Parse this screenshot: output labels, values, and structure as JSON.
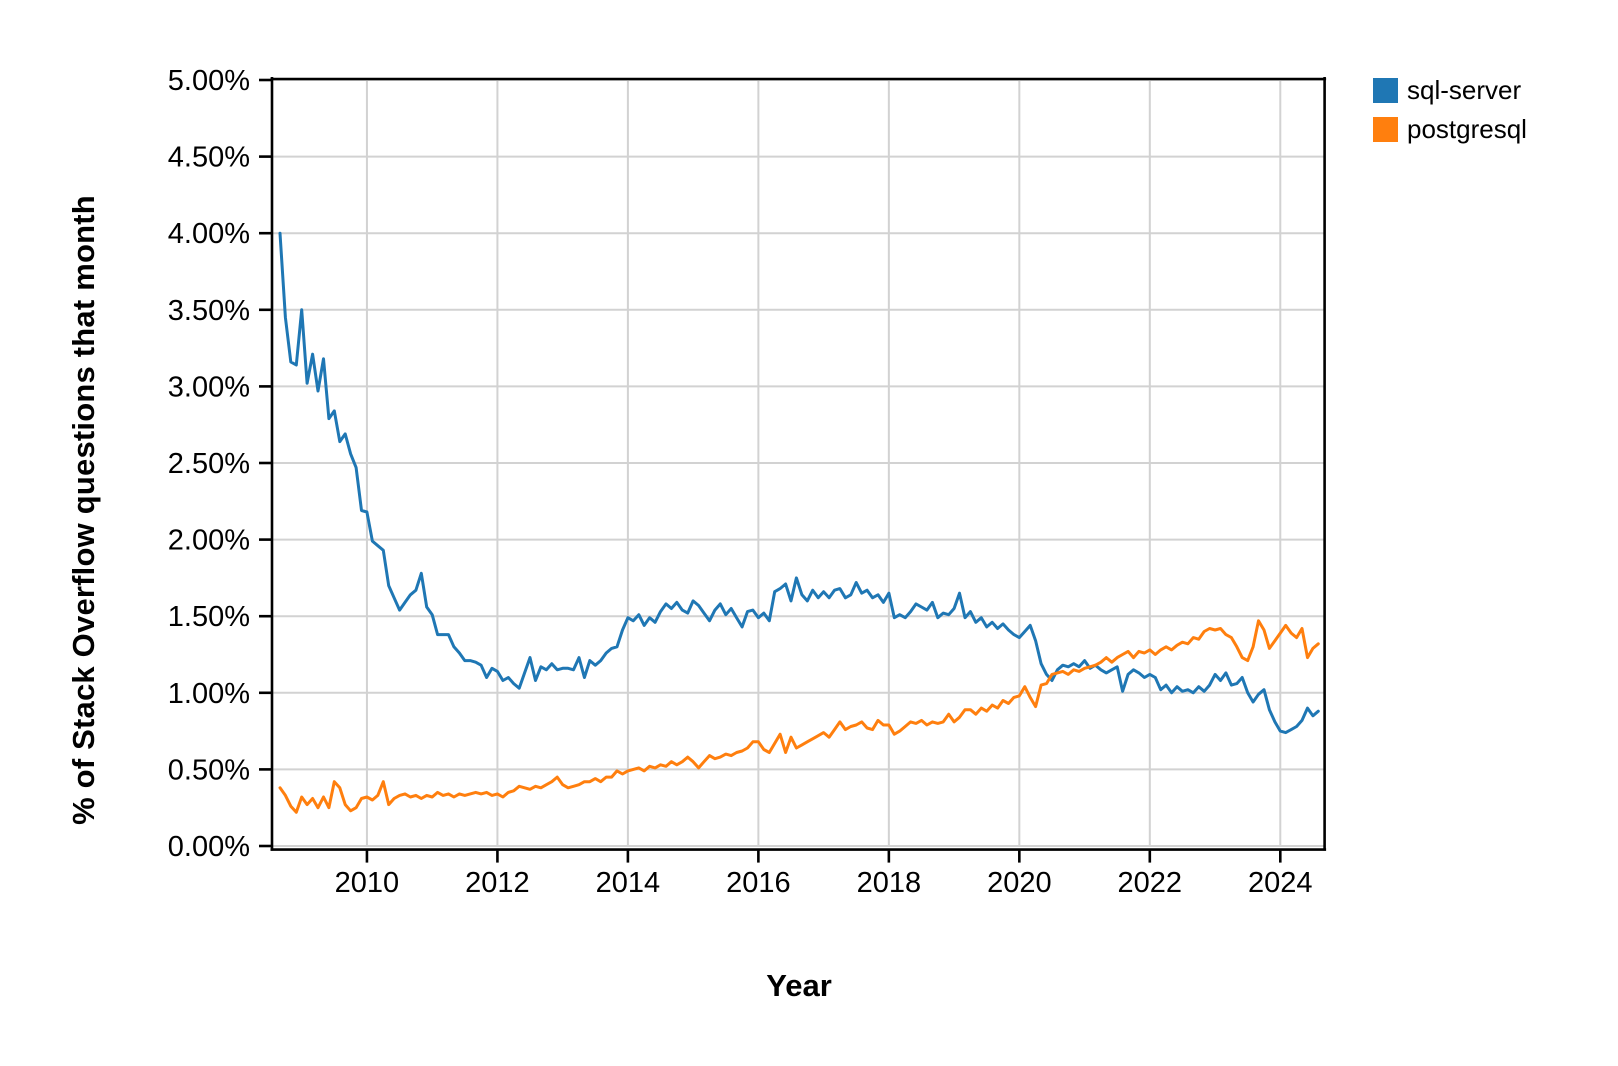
{
  "chart_data": {
    "type": "line",
    "title": "",
    "xlabel": "Year",
    "ylabel": "% of Stack Overflow questions that month",
    "grid": true,
    "legend_position": "top-right-outside",
    "x_start": 2008.6667,
    "x_step": 0.0833333,
    "x_axis": {
      "min": 2008.56,
      "max": 2024.67,
      "tick_values": [
        2010,
        2012,
        2014,
        2016,
        2018,
        2020,
        2022,
        2024
      ],
      "tick_labels": [
        "2010",
        "2012",
        "2014",
        "2016",
        "2018",
        "2020",
        "2022",
        "2024"
      ]
    },
    "y_axis": {
      "min": 0,
      "max": 5,
      "tick_values": [
        0,
        0.5,
        1,
        1.5,
        2,
        2.5,
        3,
        3.5,
        4,
        4.5,
        5
      ],
      "tick_labels": [
        "0.00%",
        "0.50%",
        "1.00%",
        "1.50%",
        "2.00%",
        "2.50%",
        "3.00%",
        "3.50%",
        "4.00%",
        "4.50%",
        "5.00%"
      ]
    },
    "colors": {
      "grid": "#d2d2d2",
      "spine": "#000000",
      "tick": "#000000",
      "text": "#000000"
    },
    "series": [
      {
        "name": "sql-server",
        "color": "#1f77b4",
        "values": [
          4.0,
          3.45,
          3.16,
          3.14,
          3.5,
          3.02,
          3.21,
          2.97,
          3.18,
          2.79,
          2.84,
          2.64,
          2.69,
          2.56,
          2.47,
          2.19,
          2.18,
          1.99,
          1.96,
          1.93,
          1.7,
          1.62,
          1.54,
          1.59,
          1.64,
          1.67,
          1.78,
          1.56,
          1.51,
          1.38,
          1.38,
          1.38,
          1.3,
          1.26,
          1.21,
          1.21,
          1.2,
          1.18,
          1.1,
          1.16,
          1.14,
          1.08,
          1.1,
          1.06,
          1.03,
          1.13,
          1.23,
          1.08,
          1.17,
          1.15,
          1.19,
          1.15,
          1.16,
          1.16,
          1.15,
          1.23,
          1.1,
          1.21,
          1.18,
          1.21,
          1.26,
          1.29,
          1.3,
          1.41,
          1.49,
          1.47,
          1.51,
          1.44,
          1.49,
          1.46,
          1.53,
          1.58,
          1.55,
          1.59,
          1.54,
          1.52,
          1.6,
          1.57,
          1.52,
          1.47,
          1.54,
          1.58,
          1.51,
          1.55,
          1.49,
          1.43,
          1.53,
          1.54,
          1.49,
          1.52,
          1.47,
          1.66,
          1.68,
          1.71,
          1.6,
          1.75,
          1.64,
          1.6,
          1.67,
          1.62,
          1.66,
          1.62,
          1.67,
          1.68,
          1.62,
          1.64,
          1.72,
          1.65,
          1.67,
          1.62,
          1.64,
          1.59,
          1.65,
          1.49,
          1.51,
          1.49,
          1.53,
          1.58,
          1.56,
          1.54,
          1.59,
          1.49,
          1.52,
          1.51,
          1.55,
          1.65,
          1.49,
          1.53,
          1.46,
          1.49,
          1.43,
          1.46,
          1.42,
          1.45,
          1.41,
          1.38,
          1.36,
          1.4,
          1.44,
          1.34,
          1.19,
          1.12,
          1.08,
          1.15,
          1.18,
          1.17,
          1.19,
          1.17,
          1.21,
          1.16,
          1.18,
          1.15,
          1.13,
          1.15,
          1.17,
          1.01,
          1.12,
          1.15,
          1.13,
          1.1,
          1.12,
          1.1,
          1.02,
          1.05,
          1.0,
          1.04,
          1.01,
          1.02,
          1.0,
          1.04,
          1.01,
          1.05,
          1.12,
          1.08,
          1.13,
          1.05,
          1.06,
          1.1,
          1.0,
          0.94,
          0.99,
          1.02,
          0.89,
          0.81,
          0.75,
          0.74,
          0.76,
          0.78,
          0.82,
          0.9,
          0.85,
          0.88
        ]
      },
      {
        "name": "postgresql",
        "color": "#ff7f0e",
        "values": [
          0.38,
          0.33,
          0.26,
          0.22,
          0.32,
          0.27,
          0.31,
          0.25,
          0.32,
          0.25,
          0.42,
          0.38,
          0.27,
          0.23,
          0.25,
          0.31,
          0.32,
          0.3,
          0.33,
          0.42,
          0.27,
          0.31,
          0.33,
          0.34,
          0.32,
          0.33,
          0.31,
          0.33,
          0.32,
          0.35,
          0.33,
          0.34,
          0.32,
          0.34,
          0.33,
          0.34,
          0.35,
          0.34,
          0.35,
          0.33,
          0.34,
          0.32,
          0.35,
          0.36,
          0.39,
          0.38,
          0.37,
          0.39,
          0.38,
          0.4,
          0.42,
          0.45,
          0.4,
          0.38,
          0.39,
          0.4,
          0.42,
          0.42,
          0.44,
          0.42,
          0.45,
          0.45,
          0.49,
          0.47,
          0.49,
          0.5,
          0.51,
          0.49,
          0.52,
          0.51,
          0.53,
          0.52,
          0.55,
          0.53,
          0.55,
          0.58,
          0.55,
          0.51,
          0.55,
          0.59,
          0.57,
          0.58,
          0.6,
          0.59,
          0.61,
          0.62,
          0.64,
          0.68,
          0.68,
          0.63,
          0.61,
          0.67,
          0.73,
          0.61,
          0.71,
          0.64,
          0.66,
          0.68,
          0.7,
          0.72,
          0.74,
          0.71,
          0.76,
          0.81,
          0.76,
          0.78,
          0.79,
          0.81,
          0.77,
          0.76,
          0.82,
          0.79,
          0.79,
          0.73,
          0.75,
          0.78,
          0.81,
          0.8,
          0.82,
          0.79,
          0.81,
          0.8,
          0.81,
          0.86,
          0.81,
          0.84,
          0.89,
          0.89,
          0.86,
          0.9,
          0.88,
          0.92,
          0.9,
          0.95,
          0.93,
          0.97,
          0.98,
          1.04,
          0.97,
          0.91,
          1.05,
          1.06,
          1.12,
          1.13,
          1.14,
          1.12,
          1.15,
          1.14,
          1.16,
          1.17,
          1.18,
          1.2,
          1.23,
          1.2,
          1.23,
          1.25,
          1.27,
          1.23,
          1.27,
          1.26,
          1.28,
          1.25,
          1.28,
          1.3,
          1.28,
          1.31,
          1.33,
          1.32,
          1.36,
          1.35,
          1.4,
          1.42,
          1.41,
          1.42,
          1.38,
          1.36,
          1.3,
          1.23,
          1.21,
          1.3,
          1.47,
          1.41,
          1.29,
          1.34,
          1.39,
          1.44,
          1.39,
          1.36,
          1.42,
          1.23,
          1.29,
          1.32
        ]
      }
    ]
  }
}
